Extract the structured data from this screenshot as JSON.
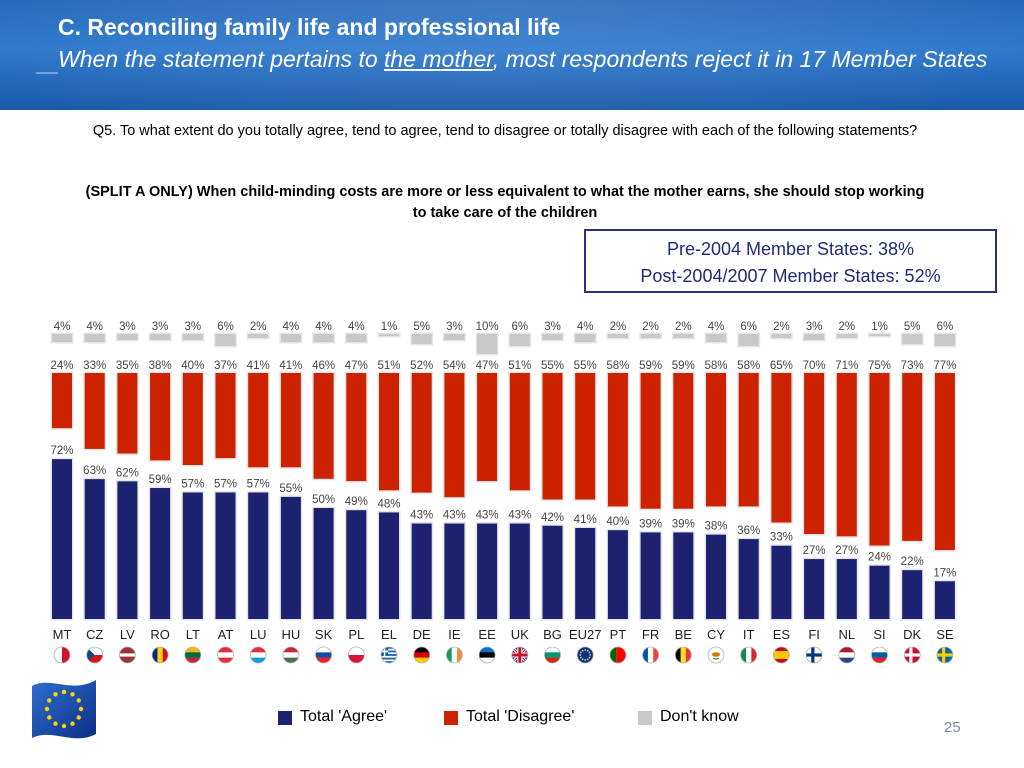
{
  "header": {
    "title": "C. Reconciling family life and professional life",
    "subtitle_prefix": "When the statement pertains to ",
    "subtitle_emphasis": "the mother",
    "subtitle_suffix": ", most respondents reject it in 17 Member States"
  },
  "question": "Q5. To what extent do you totally agree, tend to agree, tend to disagree or totally disagree with each of the following statements?",
  "statement": "(SPLIT A ONLY) When child-minding costs are more or less equivalent to what the mother earns, she should stop working to take care of the children",
  "summary": {
    "line1": "Pre-2004 Member States: 38%",
    "line2": "Post-2004/2007 Member States: 52%"
  },
  "legend": {
    "agree": "Total 'Agree'",
    "disagree": "Total 'Disagree'",
    "dontknow": "Don't know"
  },
  "colors": {
    "agree": "#1c2270",
    "disagree": "#cc2200",
    "dontknow": "#c8c8c8",
    "header": "#1d63b8",
    "summary_border": "#2b2f86"
  },
  "page_number": "25",
  "chart_data": {
    "type": "bar",
    "categories": [
      "MT",
      "CZ",
      "LV",
      "RO",
      "LT",
      "AT",
      "LU",
      "HU",
      "SK",
      "PL",
      "EL",
      "DE",
      "IE",
      "EE",
      "UK",
      "BG",
      "EU27",
      "PT",
      "FR",
      "BE",
      "CY",
      "IT",
      "ES",
      "FI",
      "NL",
      "SI",
      "DK",
      "SE"
    ],
    "series": [
      {
        "name": "Total 'Agree'",
        "values": [
          72,
          63,
          62,
          59,
          57,
          57,
          57,
          55,
          50,
          49,
          48,
          43,
          43,
          43,
          43,
          42,
          41,
          40,
          39,
          39,
          38,
          36,
          33,
          27,
          27,
          24,
          22,
          17
        ]
      },
      {
        "name": "Total 'Disagree'",
        "values": [
          24,
          33,
          35,
          38,
          40,
          37,
          41,
          41,
          46,
          47,
          51,
          52,
          54,
          47,
          51,
          55,
          55,
          58,
          59,
          59,
          58,
          58,
          65,
          70,
          71,
          75,
          73,
          77
        ]
      },
      {
        "name": "Don't know",
        "values": [
          4,
          4,
          3,
          3,
          3,
          6,
          2,
          4,
          4,
          4,
          1,
          5,
          3,
          10,
          6,
          3,
          4,
          2,
          2,
          2,
          4,
          6,
          2,
          3,
          2,
          1,
          5,
          6
        ]
      }
    ],
    "value_suffix": "%",
    "flag_icons": [
      "flag-mt-icon",
      "flag-cz-icon",
      "flag-lv-icon",
      "flag-ro-icon",
      "flag-lt-icon",
      "flag-at-icon",
      "flag-lu-icon",
      "flag-hu-icon",
      "flag-sk-icon",
      "flag-pl-icon",
      "flag-el-icon",
      "flag-de-icon",
      "flag-ie-icon",
      "flag-ee-icon",
      "flag-uk-icon",
      "flag-bg-icon",
      "flag-eu27-icon",
      "flag-pt-icon",
      "flag-fr-icon",
      "flag-be-icon",
      "flag-cy-icon",
      "flag-it-icon",
      "flag-es-icon",
      "flag-fi-icon",
      "flag-nl-icon",
      "flag-si-icon",
      "flag-dk-icon",
      "flag-se-icon"
    ],
    "legend_position": "bottom",
    "grid": false
  }
}
